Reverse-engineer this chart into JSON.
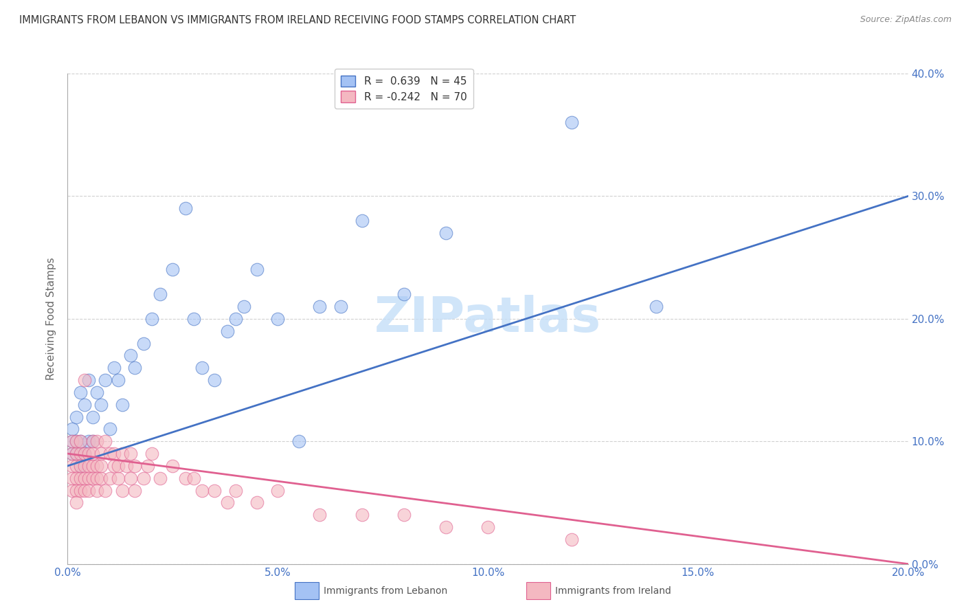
{
  "title": "IMMIGRANTS FROM LEBANON VS IMMIGRANTS FROM IRELAND RECEIVING FOOD STAMPS CORRELATION CHART",
  "source": "Source: ZipAtlas.com",
  "ylabel": "Receiving Food Stamps",
  "legend_lebanon": "Immigrants from Lebanon",
  "legend_ireland": "Immigrants from Ireland",
  "R_lebanon": 0.639,
  "N_lebanon": 45,
  "R_ireland": -0.242,
  "N_ireland": 70,
  "xlim": [
    0.0,
    0.2
  ],
  "ylim": [
    0.0,
    0.4
  ],
  "xticks": [
    0.0,
    0.05,
    0.1,
    0.15,
    0.2
  ],
  "yticks": [
    0.0,
    0.1,
    0.2,
    0.3,
    0.4
  ],
  "color_lebanon": "#a4c2f4",
  "color_ireland": "#f4b8c1",
  "color_line_lebanon": "#4472c4",
  "color_line_ireland": "#e06090",
  "watermark": "ZIPatlas",
  "watermark_color": "#c5dff8",
  "background_color": "#ffffff",
  "lebanon_x": [
    0.001,
    0.001,
    0.001,
    0.002,
    0.002,
    0.002,
    0.003,
    0.003,
    0.003,
    0.004,
    0.004,
    0.005,
    0.005,
    0.006,
    0.006,
    0.007,
    0.008,
    0.009,
    0.01,
    0.011,
    0.012,
    0.013,
    0.015,
    0.016,
    0.018,
    0.02,
    0.022,
    0.025,
    0.028,
    0.03,
    0.032,
    0.035,
    0.038,
    0.04,
    0.042,
    0.045,
    0.05,
    0.055,
    0.06,
    0.065,
    0.07,
    0.08,
    0.09,
    0.12,
    0.14
  ],
  "lebanon_y": [
    0.09,
    0.1,
    0.11,
    0.09,
    0.1,
    0.12,
    0.1,
    0.14,
    0.08,
    0.13,
    0.09,
    0.1,
    0.15,
    0.1,
    0.12,
    0.14,
    0.13,
    0.15,
    0.11,
    0.16,
    0.15,
    0.13,
    0.17,
    0.16,
    0.18,
    0.2,
    0.22,
    0.24,
    0.29,
    0.2,
    0.16,
    0.15,
    0.19,
    0.2,
    0.21,
    0.24,
    0.2,
    0.1,
    0.21,
    0.21,
    0.28,
    0.22,
    0.27,
    0.36,
    0.21
  ],
  "ireland_x": [
    0.001,
    0.001,
    0.001,
    0.001,
    0.001,
    0.002,
    0.002,
    0.002,
    0.002,
    0.002,
    0.002,
    0.003,
    0.003,
    0.003,
    0.003,
    0.003,
    0.004,
    0.004,
    0.004,
    0.004,
    0.004,
    0.005,
    0.005,
    0.005,
    0.005,
    0.006,
    0.006,
    0.006,
    0.006,
    0.007,
    0.007,
    0.007,
    0.007,
    0.008,
    0.008,
    0.008,
    0.009,
    0.009,
    0.01,
    0.01,
    0.011,
    0.011,
    0.012,
    0.012,
    0.013,
    0.013,
    0.014,
    0.015,
    0.015,
    0.016,
    0.016,
    0.018,
    0.019,
    0.02,
    0.022,
    0.025,
    0.028,
    0.03,
    0.032,
    0.035,
    0.038,
    0.04,
    0.045,
    0.05,
    0.06,
    0.07,
    0.08,
    0.09,
    0.1,
    0.12
  ],
  "ireland_y": [
    0.08,
    0.07,
    0.09,
    0.06,
    0.1,
    0.08,
    0.07,
    0.09,
    0.06,
    0.1,
    0.05,
    0.09,
    0.07,
    0.08,
    0.06,
    0.1,
    0.08,
    0.07,
    0.09,
    0.06,
    0.15,
    0.08,
    0.07,
    0.09,
    0.06,
    0.1,
    0.08,
    0.07,
    0.09,
    0.08,
    0.07,
    0.06,
    0.1,
    0.07,
    0.09,
    0.08,
    0.06,
    0.1,
    0.09,
    0.07,
    0.08,
    0.09,
    0.07,
    0.08,
    0.09,
    0.06,
    0.08,
    0.09,
    0.07,
    0.08,
    0.06,
    0.07,
    0.08,
    0.09,
    0.07,
    0.08,
    0.07,
    0.07,
    0.06,
    0.06,
    0.05,
    0.06,
    0.05,
    0.06,
    0.04,
    0.04,
    0.04,
    0.03,
    0.03,
    0.02
  ]
}
